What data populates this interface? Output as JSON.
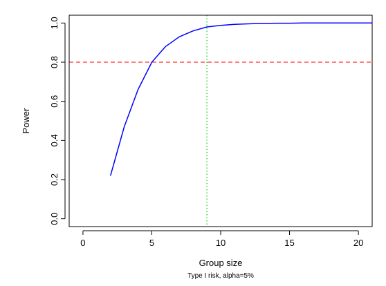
{
  "chart_data": {
    "type": "line",
    "title": "",
    "xlabel": "Group size",
    "ylabel": "Power",
    "subtitle": "Type I risk, alpha=5%",
    "xlim": [
      -1,
      21
    ],
    "ylim": [
      -0.04,
      1.04
    ],
    "x_ticks": [
      0,
      5,
      10,
      15,
      20
    ],
    "y_ticks": [
      0.0,
      0.2,
      0.4,
      0.6,
      0.8,
      1.0
    ],
    "x_tick_labels": [
      "0",
      "5",
      "10",
      "15",
      "20"
    ],
    "y_tick_labels": [
      "0.0",
      "0.2",
      "0.4",
      "0.6",
      "0.8",
      "1.0"
    ],
    "grid": false,
    "series": [
      {
        "color": "#0000ff",
        "x": [
          2,
          3,
          4,
          5,
          6,
          7,
          8,
          9,
          10,
          11,
          12,
          13,
          14,
          15,
          16,
          17,
          18,
          19,
          20,
          21
        ],
        "values": [
          0.22,
          0.47,
          0.66,
          0.8,
          0.88,
          0.93,
          0.96,
          0.98,
          0.988,
          0.993,
          0.996,
          0.998,
          0.999,
          0.999,
          1.0,
          1.0,
          1.0,
          1.0,
          1.0,
          1.0
        ]
      }
    ],
    "reference_lines": [
      {
        "orientation": "horizontal",
        "value": 0.8,
        "color": "#ff0000",
        "style": "dashed"
      },
      {
        "orientation": "vertical",
        "value": 9,
        "color": "#00cc00",
        "style": "dotted"
      }
    ]
  }
}
